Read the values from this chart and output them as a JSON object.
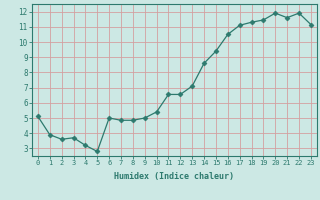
{
  "x": [
    0,
    1,
    2,
    3,
    4,
    5,
    6,
    7,
    8,
    9,
    10,
    11,
    12,
    13,
    14,
    15,
    16,
    17,
    18,
    19,
    20,
    21,
    22,
    23
  ],
  "y": [
    5.1,
    3.9,
    3.6,
    3.7,
    3.2,
    2.8,
    5.0,
    4.85,
    4.85,
    5.0,
    5.4,
    6.55,
    6.55,
    7.1,
    8.6,
    9.4,
    10.5,
    11.1,
    11.3,
    11.45,
    11.9,
    11.6,
    11.9,
    11.15
  ],
  "line_color": "#2d7a6e",
  "marker": "D",
  "marker_size": 2.5,
  "bg_color": "#cce8e4",
  "grid_color": "#c0d4d0",
  "xlabel": "Humidex (Indice chaleur)",
  "xlim": [
    -0.5,
    23.5
  ],
  "ylim": [
    2.5,
    12.5
  ],
  "yticks": [
    3,
    4,
    5,
    6,
    7,
    8,
    9,
    10,
    11,
    12
  ],
  "xticks": [
    0,
    1,
    2,
    3,
    4,
    5,
    6,
    7,
    8,
    9,
    10,
    11,
    12,
    13,
    14,
    15,
    16,
    17,
    18,
    19,
    20,
    21,
    22,
    23
  ],
  "tick_color": "#2d7a6e",
  "label_color": "#2d7a6e",
  "axis_color": "#2d7a6e",
  "grid_minor_color": "#d8ecec"
}
